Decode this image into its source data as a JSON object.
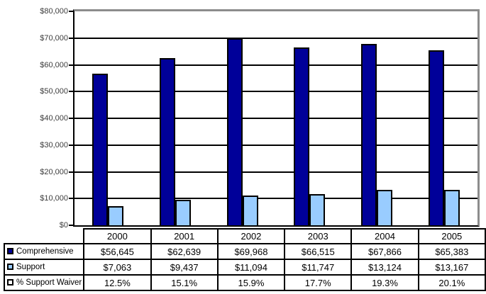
{
  "chart_data": {
    "type": "bar",
    "title": "",
    "xlabel": "",
    "ylabel": "",
    "categories": [
      "2000",
      "2001",
      "2002",
      "2003",
      "2004",
      "2005"
    ],
    "series": [
      {
        "name": "Comprehensive",
        "color": "#000099",
        "values": [
          56645,
          62639,
          69968,
          66515,
          67866,
          65383
        ]
      },
      {
        "name": "Support",
        "color": "#99CCFF",
        "values": [
          7063,
          9437,
          11094,
          11747,
          13124,
          13167
        ]
      }
    ],
    "percent_series": {
      "name": "% Support Waiver",
      "color": "#FFFFFF",
      "values": [
        12.5,
        15.1,
        15.9,
        17.7,
        19.3,
        20.1
      ]
    },
    "ylim": [
      0,
      80000
    ],
    "ytick_step": 10000,
    "ytick_labels": [
      "$0",
      "$10,000",
      "$20,000",
      "$30,000",
      "$40,000",
      "$50,000",
      "$60,000",
      "$70,000",
      "$80,000"
    ],
    "grid": true,
    "legend_position": "table-left"
  },
  "table": {
    "columns": [
      "2000",
      "2001",
      "2002",
      "2003",
      "2004",
      "2005"
    ],
    "rows": [
      {
        "label": "Comprehensive",
        "swatch_color": "#000099",
        "values": [
          "$56,645",
          "$62,639",
          "$69,968",
          "$66,515",
          "$67,866",
          "$65,383"
        ]
      },
      {
        "label": "Support",
        "swatch_color": "#99CCFF",
        "values": [
          "$7,063",
          "$9,437",
          "$11,094",
          "$11,747",
          "$13,124",
          "$13,167"
        ]
      },
      {
        "label": "% Support Waiver",
        "swatch_color": "#FFFFFF",
        "values": [
          "12.5%",
          "15.1%",
          "15.9%",
          "17.7%",
          "19.3%",
          "20.1%"
        ]
      }
    ]
  },
  "colors": {
    "comprehensive_bar": "#000099",
    "support_bar": "#99CCFF",
    "waiver_swatch": "#FFFFFF",
    "gridline": "#000000",
    "plot_border_gray": "#8c8c8c",
    "axis": "#000000",
    "background": "#ffffff"
  }
}
